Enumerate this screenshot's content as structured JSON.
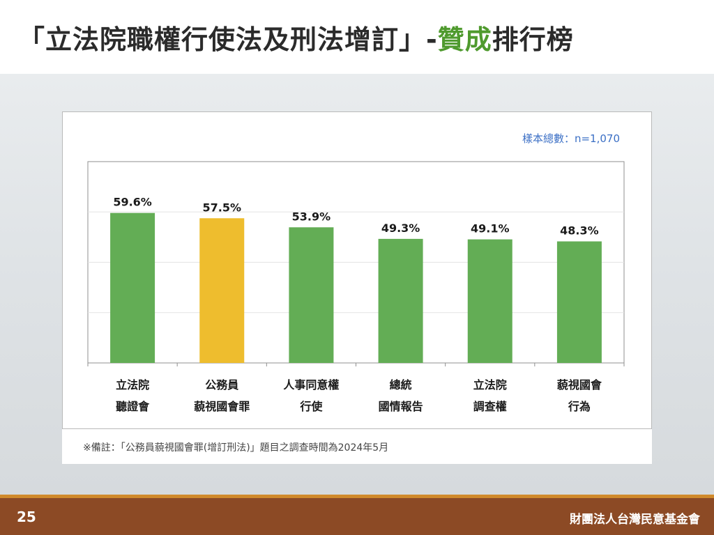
{
  "header": {
    "title_prefix": "「立法院職權行使法及刑法增訂」-",
    "title_accent": "贊成",
    "title_suffix": "排行榜"
  },
  "sample_note": "樣本總數：n=1,070",
  "footnote": "※備註：「公務員藐視國會罪(增訂刑法)」題目之調查時間為2024年5月",
  "footer": {
    "page_number": "25",
    "organization": "財團法人台灣民意基金會"
  },
  "colors": {
    "bar_default": "#63ad55",
    "bar_highlight": "#eebd2e",
    "title_accent": "#4f9a2e",
    "footer_bg": "#8c4a25"
  },
  "chart_data": {
    "type": "bar",
    "title": "",
    "xlabel": "",
    "ylabel": "",
    "ylim": [
      0,
      80
    ],
    "grid": true,
    "categories": [
      [
        "立法院",
        "聽證會"
      ],
      [
        "公務員",
        "藐視國會罪"
      ],
      [
        "人事同意權",
        "行使"
      ],
      [
        "總統",
        "國情報告"
      ],
      [
        "立法院",
        "調查權"
      ],
      [
        "藐視國會",
        "行為"
      ]
    ],
    "values": [
      59.6,
      57.5,
      53.9,
      49.3,
      49.1,
      48.3
    ],
    "data_labels": [
      "59.6%",
      "57.5%",
      "53.9%",
      "49.3%",
      "49.1%",
      "48.3%"
    ],
    "highlight_index": 1
  }
}
